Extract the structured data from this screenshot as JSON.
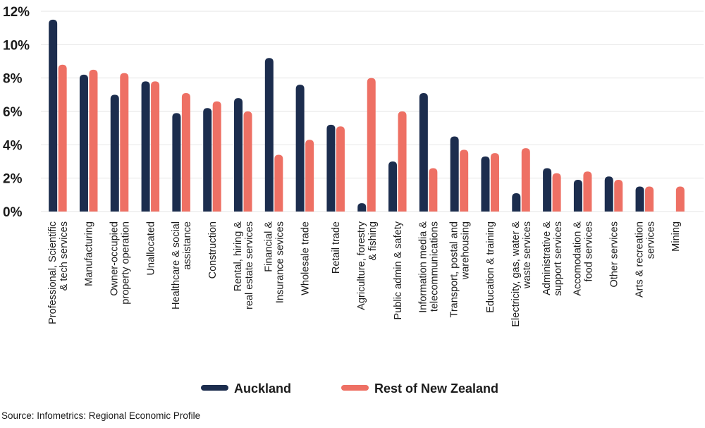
{
  "chart_data": {
    "type": "bar",
    "y_tick_labels": [
      "0%",
      "2%",
      "4%",
      "6%",
      "8%",
      "10%",
      "12%"
    ],
    "ylim": [
      0,
      12
    ],
    "grid": true,
    "legend_position": "bottom-center",
    "categories": [
      [
        "Professional, Scientific",
        "& tech services"
      ],
      [
        "Manufacturing"
      ],
      [
        "Owner-occupied",
        "property operation"
      ],
      [
        "Unallocated"
      ],
      [
        "Healthcare & social",
        "assistance"
      ],
      [
        "Construction"
      ],
      [
        "Rental, hiring &",
        "real estate services"
      ],
      [
        "Financial &",
        "Insurance sevices"
      ],
      [
        "Wholesale trade"
      ],
      [
        "Retail trade"
      ],
      [
        "Agriculture, forestry",
        "& fishing"
      ],
      [
        "Public admin & safety"
      ],
      [
        "Information media &",
        "telecommunications"
      ],
      [
        "Transport, postal and",
        "warehousing"
      ],
      [
        "Education & training"
      ],
      [
        "Electricity, gas, water &",
        "waste services"
      ],
      [
        "Administrative &",
        "support services"
      ],
      [
        "Accomodation &",
        "food services"
      ],
      [
        "Other services"
      ],
      [
        "Arts & recreation",
        "services"
      ],
      [
        "Mining"
      ]
    ],
    "series": [
      {
        "name": "Auckland",
        "color": "#1c2d4e",
        "values": [
          11.5,
          8.2,
          7.0,
          7.8,
          5.9,
          6.2,
          6.8,
          9.2,
          7.6,
          5.2,
          0.5,
          3.0,
          7.1,
          4.5,
          3.3,
          1.1,
          2.6,
          1.9,
          2.1,
          1.5,
          0.0
        ]
      },
      {
        "name": "Rest of New Zealand",
        "color": "#ee7064",
        "values": [
          8.8,
          8.5,
          8.3,
          7.8,
          7.1,
          6.6,
          6.0,
          3.4,
          4.3,
          5.1,
          8.0,
          6.0,
          2.6,
          3.7,
          3.5,
          3.8,
          2.3,
          2.4,
          1.9,
          1.5,
          1.5
        ]
      }
    ]
  },
  "source": "Source: Infometrics: Regional Economic Profile"
}
